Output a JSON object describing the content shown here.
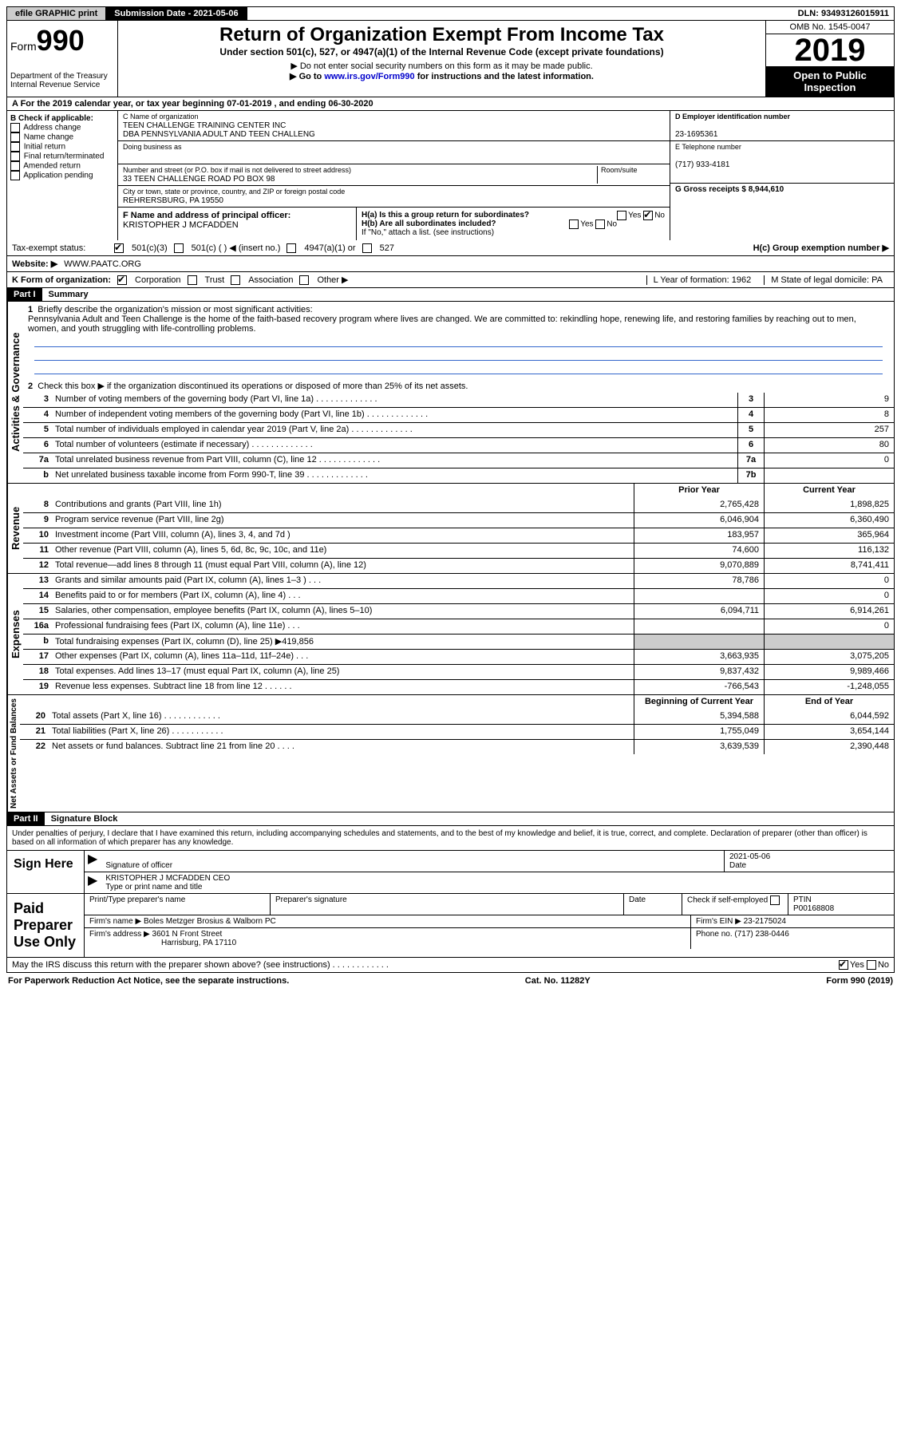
{
  "topbar": {
    "efile": "efile GRAPHIC print",
    "submission_label": "Submission Date - 2021-05-06",
    "dln": "DLN: 93493126015911"
  },
  "header": {
    "form_word": "Form",
    "form_num": "990",
    "dept1": "Department of the Treasury",
    "dept2": "Internal Revenue Service",
    "title": "Return of Organization Exempt From Income Tax",
    "sub1": "Under section 501(c), 527, or 4947(a)(1) of the Internal Revenue Code (except private foundations)",
    "sub2": "▶ Do not enter social security numbers on this form as it may be made public.",
    "sub3a": "▶ Go to ",
    "sub3_link": "www.irs.gov/Form990",
    "sub3b": " for instructions and the latest information.",
    "omb": "OMB No. 1545-0047",
    "year": "2019",
    "inspect": "Open to Public Inspection"
  },
  "rowA": "A   For the 2019 calendar year, or tax year beginning 07-01-2019    , and ending 06-30-2020",
  "boxB": {
    "label": "B Check if applicable:",
    "items": [
      "Address change",
      "Name change",
      "Initial return",
      "Final return/terminated",
      "Amended return",
      "Application pending"
    ]
  },
  "boxC": {
    "name_label": "C Name of organization",
    "name1": "TEEN CHALLENGE TRAINING CENTER INC",
    "name2": "DBA PENNSYLVANIA ADULT AND TEEN CHALLENG",
    "dba_label": "Doing business as",
    "street_label": "Number and street (or P.O. box if mail is not delivered to street address)",
    "room_label": "Room/suite",
    "street": "33 TEEN CHALLENGE ROAD PO BOX 98",
    "city_label": "City or town, state or province, country, and ZIP or foreign postal code",
    "city": "REHRERSBURG, PA  19550",
    "f_label": "F  Name and address of principal officer:",
    "f_name": "KRISTOPHER J MCFADDEN"
  },
  "boxD": {
    "label": "D Employer identification number",
    "value": "23-1695361"
  },
  "boxE": {
    "label": "E Telephone number",
    "value": "(717) 933-4181"
  },
  "boxG": {
    "label": "G Gross receipts $ 8,944,610"
  },
  "boxH": {
    "ha": "H(a)  Is this a group return for subordinates?",
    "hb": "H(b)  Are all subordinates included?",
    "hb_note": "If \"No,\" attach a list. (see instructions)",
    "hc": "H(c)  Group exemption number ▶",
    "yes": "Yes",
    "no": "No"
  },
  "taxExempt": {
    "label": "Tax-exempt status:",
    "o1": "501(c)(3)",
    "o2": "501(c) (  ) ◀ (insert no.)",
    "o3": "4947(a)(1) or",
    "o4": "527"
  },
  "website": {
    "label": "Website: ▶",
    "value": "WWW.PAATC.ORG"
  },
  "korg": {
    "label": "K Form of organization:",
    "opts": [
      "Corporation",
      "Trust",
      "Association",
      "Other ▶"
    ],
    "L": "L Year of formation: 1962",
    "M": "M State of legal domicile: PA"
  },
  "partI": {
    "header": "Part I",
    "title": "Summary"
  },
  "gov": {
    "label": "Activities & Governance",
    "l1": "Briefly describe the organization's mission or most significant activities:",
    "mission": "Pennsylvania Adult and Teen Challenge is the home of the faith-based recovery program where lives are changed. We are committed to: rekindling hope, renewing life, and restoring families by reaching out to men, women, and youth struggling with life-controlling problems.",
    "l2": "Check this box ▶        if the organization discontinued its operations or disposed of more than 25% of its net assets.",
    "lines": [
      {
        "n": "3",
        "t": "Number of voting members of the governing body (Part VI, line 1a)",
        "b": "3",
        "v": "9"
      },
      {
        "n": "4",
        "t": "Number of independent voting members of the governing body (Part VI, line 1b)",
        "b": "4",
        "v": "8"
      },
      {
        "n": "5",
        "t": "Total number of individuals employed in calendar year 2019 (Part V, line 2a)",
        "b": "5",
        "v": "257"
      },
      {
        "n": "6",
        "t": "Total number of volunteers (estimate if necessary)",
        "b": "6",
        "v": "80"
      },
      {
        "n": "7a",
        "t": "Total unrelated business revenue from Part VIII, column (C), line 12",
        "b": "7a",
        "v": "0"
      },
      {
        "n": "b",
        "t": "Net unrelated business taxable income from Form 990-T, line 39",
        "b": "7b",
        "v": ""
      }
    ]
  },
  "rev": {
    "label": "Revenue",
    "head_prior": "Prior Year",
    "head_curr": "Current Year",
    "lines": [
      {
        "n": "8",
        "t": "Contributions and grants (Part VIII, line 1h)",
        "p": "2,765,428",
        "c": "1,898,825"
      },
      {
        "n": "9",
        "t": "Program service revenue (Part VIII, line 2g)",
        "p": "6,046,904",
        "c": "6,360,490"
      },
      {
        "n": "10",
        "t": "Investment income (Part VIII, column (A), lines 3, 4, and 7d )",
        "p": "183,957",
        "c": "365,964"
      },
      {
        "n": "11",
        "t": "Other revenue (Part VIII, column (A), lines 5, 6d, 8c, 9c, 10c, and 11e)",
        "p": "74,600",
        "c": "116,132"
      },
      {
        "n": "12",
        "t": "Total revenue—add lines 8 through 11 (must equal Part VIII, column (A), line 12)",
        "p": "9,070,889",
        "c": "8,741,411"
      }
    ]
  },
  "exp": {
    "label": "Expenses",
    "lines": [
      {
        "n": "13",
        "t": "Grants and similar amounts paid (Part IX, column (A), lines 1–3 )   .   .   .",
        "p": "78,786",
        "c": "0"
      },
      {
        "n": "14",
        "t": "Benefits paid to or for members (Part IX, column (A), line 4)   .   .   .",
        "p": "",
        "c": "0"
      },
      {
        "n": "15",
        "t": "Salaries, other compensation, employee benefits (Part IX, column (A), lines 5–10)",
        "p": "6,094,711",
        "c": "6,914,261"
      },
      {
        "n": "16a",
        "t": "Professional fundraising fees (Part IX, column (A), line 11e)   .   .   .",
        "p": "",
        "c": "0"
      },
      {
        "n": "b",
        "t": "Total fundraising expenses (Part IX, column (D), line 25) ▶419,856",
        "p": "shade",
        "c": "shade"
      },
      {
        "n": "17",
        "t": "Other expenses (Part IX, column (A), lines 11a–11d, 11f–24e)   .   .   .",
        "p": "3,663,935",
        "c": "3,075,205"
      },
      {
        "n": "18",
        "t": "Total expenses. Add lines 13–17 (must equal Part IX, column (A), line 25)",
        "p": "9,837,432",
        "c": "9,989,466"
      },
      {
        "n": "19",
        "t": "Revenue less expenses. Subtract line 18 from line 12  .   .   .   .   .   .",
        "p": "-766,543",
        "c": "-1,248,055"
      }
    ]
  },
  "net": {
    "label": "Net Assets or Fund Balances",
    "head_beg": "Beginning of Current Year",
    "head_end": "End of Year",
    "lines": [
      {
        "n": "20",
        "t": "Total assets (Part X, line 16)  .   .   .   .   .   .   .   .   .   .   .   .",
        "p": "5,394,588",
        "c": "6,044,592"
      },
      {
        "n": "21",
        "t": "Total liabilities (Part X, line 26)  .   .   .   .   .   .   .   .   .   .   .",
        "p": "1,755,049",
        "c": "3,654,144"
      },
      {
        "n": "22",
        "t": "Net assets or fund balances. Subtract line 21 from line 20  .   .   .   .",
        "p": "3,639,539",
        "c": "2,390,448"
      }
    ]
  },
  "partII": {
    "header": "Part II",
    "title": "Signature Block"
  },
  "sig": {
    "para": "Under penalties of perjury, I declare that I have examined this return, including accompanying schedules and statements, and to the best of my knowledge and belief, it is true, correct, and complete. Declaration of preparer (other than officer) is based on all information of which preparer has any knowledge.",
    "sign_here": "Sign Here",
    "sig_officer": "Signature of officer",
    "date_label": "Date",
    "date_val": "2021-05-06",
    "name": "KRISTOPHER J MCFADDEN  CEO",
    "name_label": "Type or print name and title",
    "paid": "Paid Preparer Use Only",
    "pt_name_label": "Print/Type preparer's name",
    "pt_sig_label": "Preparer's signature",
    "pt_date_label": "Date",
    "check_self": "Check        if self-employed",
    "ptin_label": "PTIN",
    "ptin": "P00168808",
    "firm_name_label": "Firm's name    ▶",
    "firm_name": "Boles Metzger Brosius & Walborn PC",
    "firm_ein_label": "Firm's EIN ▶",
    "firm_ein": "23-2175024",
    "firm_addr_label": "Firm's address ▶",
    "firm_addr1": "3601 N Front Street",
    "firm_addr2": "Harrisburg, PA  17110",
    "phone_label": "Phone no.",
    "phone": "(717) 238-0446",
    "discuss": "May the IRS discuss this return with the preparer shown above? (see instructions)   .   .   .   .   .   .   .   .   .   .   .   ."
  },
  "footer": {
    "left": "For Paperwork Reduction Act Notice, see the separate instructions.",
    "mid": "Cat. No. 11282Y",
    "right": "Form 990 (2019)"
  }
}
